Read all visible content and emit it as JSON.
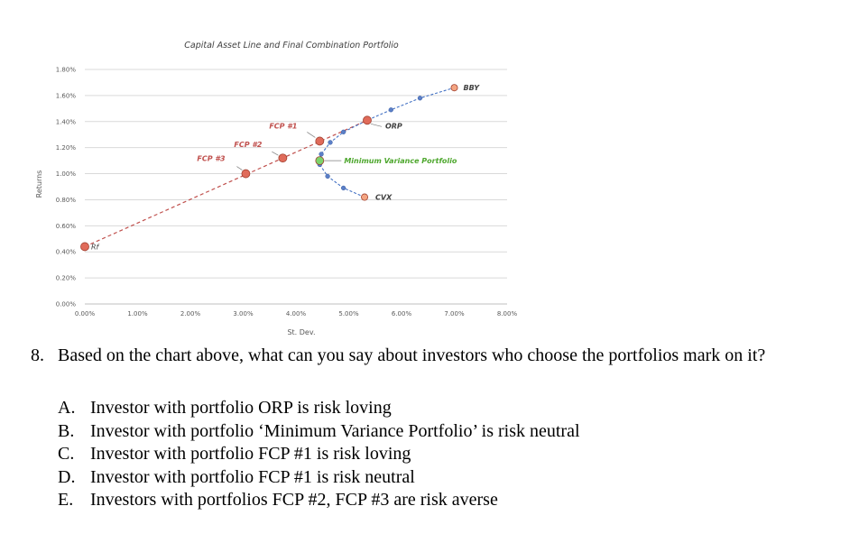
{
  "chart_data": {
    "type": "scatter",
    "title": "Capital Asset Line and Final Combination Portfolio",
    "xlabel": "St. Dev.",
    "ylabel": "Returns",
    "xlim": [
      0,
      8
    ],
    "ylim": [
      0,
      1.8
    ],
    "x_ticks": [
      "0.00%",
      "1.00%",
      "2.00%",
      "3.00%",
      "4.00%",
      "5.00%",
      "6.00%",
      "7.00%",
      "8.00%"
    ],
    "y_ticks": [
      "0.00%",
      "0.20%",
      "0.40%",
      "0.60%",
      "0.80%",
      "1.00%",
      "1.20%",
      "1.40%",
      "1.60%",
      "1.80%"
    ],
    "grid": "horizontal",
    "colors": {
      "red_point": "#e06b5a",
      "orange_point": "#f4a582",
      "green_point": "#7dd46b",
      "frontier": "#4472c4",
      "cal_line": "#c0504d"
    },
    "cal_line": {
      "x": [
        0,
        5.35
      ],
      "y": [
        0.44,
        1.41
      ]
    },
    "frontier": [
      {
        "x": 5.3,
        "y": 0.82
      },
      {
        "x": 4.9,
        "y": 0.89
      },
      {
        "x": 4.6,
        "y": 0.98
      },
      {
        "x": 4.45,
        "y": 1.07
      },
      {
        "x": 4.45,
        "y": 1.1
      },
      {
        "x": 4.48,
        "y": 1.15
      },
      {
        "x": 4.65,
        "y": 1.24
      },
      {
        "x": 4.9,
        "y": 1.32
      },
      {
        "x": 5.35,
        "y": 1.41
      },
      {
        "x": 5.8,
        "y": 1.49
      },
      {
        "x": 6.35,
        "y": 1.58
      },
      {
        "x": 7.0,
        "y": 1.66
      }
    ],
    "points": [
      {
        "name": "Rf",
        "x": 0.0,
        "y": 0.44
      },
      {
        "name": "FCP #3",
        "x": 3.05,
        "y": 1.0
      },
      {
        "name": "FCP #2",
        "x": 3.75,
        "y": 1.12
      },
      {
        "name": "FCP #1",
        "x": 4.45,
        "y": 1.25
      },
      {
        "name": "ORP",
        "x": 5.35,
        "y": 1.41
      },
      {
        "name": "Minimum Variance Portfolio",
        "x": 4.45,
        "y": 1.1
      },
      {
        "name": "CVX",
        "x": 5.3,
        "y": 0.82
      },
      {
        "name": "BBY",
        "x": 7.0,
        "y": 1.66
      }
    ]
  },
  "question": {
    "number": "8.",
    "text": "Based on the chart above, what can you say about investors who choose the portfolios mark on it?",
    "options": [
      {
        "letter": "A.",
        "text": "Investor with portfolio ORP is risk loving"
      },
      {
        "letter": "B.",
        "text": "Investor with portfolio ‘Minimum Variance Portfolio’ is risk neutral"
      },
      {
        "letter": "C.",
        "text": "Investor with portfolio FCP #1 is risk loving"
      },
      {
        "letter": "D.",
        "text": "Investor with portfolio FCP #1 is risk neutral"
      },
      {
        "letter": "E.",
        "text": "Investors with portfolios FCP #2, FCP #3 are risk averse"
      }
    ]
  }
}
